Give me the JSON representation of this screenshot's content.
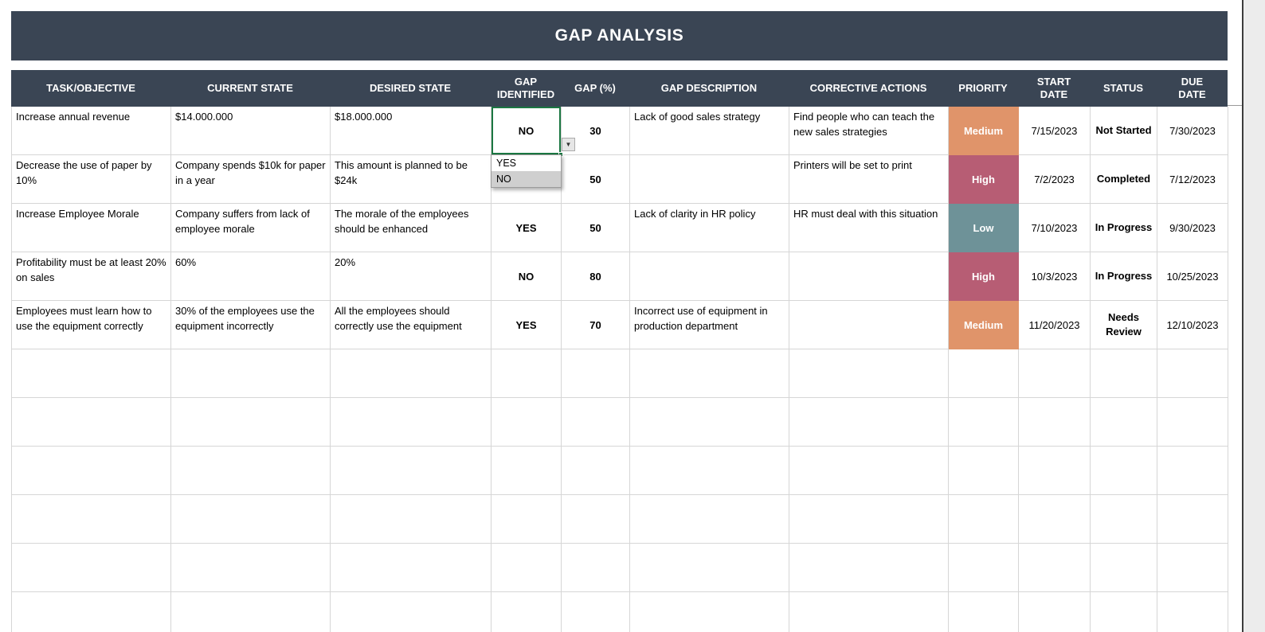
{
  "title": "GAP ANALYSIS",
  "colors": {
    "header_bg": "#3a4554",
    "priority_medium": "#e0946a",
    "priority_high": "#b75d74",
    "priority_low": "#6e9298",
    "yes_text": "#c05c74",
    "no_text": "#6e9298",
    "selection_border": "#1b7742",
    "gridline": "#d6d6d6"
  },
  "table": {
    "columns": [
      {
        "label": "TASK/OBJECTIVE"
      },
      {
        "label": "CURRENT STATE"
      },
      {
        "label": "DESIRED STATE"
      },
      {
        "label": "GAP IDENTIFIED"
      },
      {
        "label": "GAP (%)"
      },
      {
        "label": "GAP DESCRIPTION"
      },
      {
        "label": "CORRECTIVE ACTIONS"
      },
      {
        "label": "PRIORITY"
      },
      {
        "label": "START DATE"
      },
      {
        "label": "STATUS"
      },
      {
        "label": "DUE DATE"
      }
    ],
    "rows": [
      {
        "task": "Increase annual revenue",
        "current_state": "$14.000.000",
        "desired_state": "$18.000.000",
        "gap_identified": "NO",
        "gap_pct": "30",
        "gap_description": "Lack of good sales strategy",
        "corrective_actions": "Find people who can teach the new sales strategies",
        "priority": "Medium",
        "start_date": "7/15/2023",
        "status": "Not Started",
        "due_date": "7/30/2023"
      },
      {
        "task": "Decrease the use of paper by 10%",
        "current_state": "Company spends $10k for paper in a year",
        "desired_state": "This amount is planned to be $24k",
        "gap_identified": "",
        "gap_pct": "50",
        "gap_description": "",
        "corrective_actions": "Printers will be set to print",
        "priority": "High",
        "start_date": "7/2/2023",
        "status": "Completed",
        "due_date": "7/12/2023"
      },
      {
        "task": "Increase Employee Morale",
        "current_state": "Company suffers from lack of employee morale",
        "desired_state": "The morale of the employees should be enhanced",
        "gap_identified": "YES",
        "gap_pct": "50",
        "gap_description": "Lack of clarity in HR policy",
        "corrective_actions": "HR must deal with this situation",
        "priority": "Low",
        "start_date": "7/10/2023",
        "status": "In Progress",
        "due_date": "9/30/2023"
      },
      {
        "task": "Profitability must be at least 20% on sales",
        "current_state": "60%",
        "desired_state": "20%",
        "gap_identified": "NO",
        "gap_pct": "80",
        "gap_description": "",
        "corrective_actions": "",
        "priority": "High",
        "start_date": "10/3/2023",
        "status": "In Progress",
        "due_date": "10/25/2023"
      },
      {
        "task": "Employees must learn how to use the equipment correctly",
        "current_state": "30% of the employees use the equipment incorrectly",
        "desired_state": "All the employees should correctly use the equipment",
        "gap_identified": "YES",
        "gap_pct": "70",
        "gap_description": "Incorrect use of equipment in production department",
        "corrective_actions": "",
        "priority": "Medium",
        "start_date": "11/20/2023",
        "status": "Needs Review",
        "due_date": "12/10/2023"
      }
    ],
    "empty_row_count": 6
  },
  "gap_dropdown": {
    "selected_value": "NO",
    "options": [
      "YES",
      "NO"
    ],
    "highlighted_option": "NO"
  }
}
